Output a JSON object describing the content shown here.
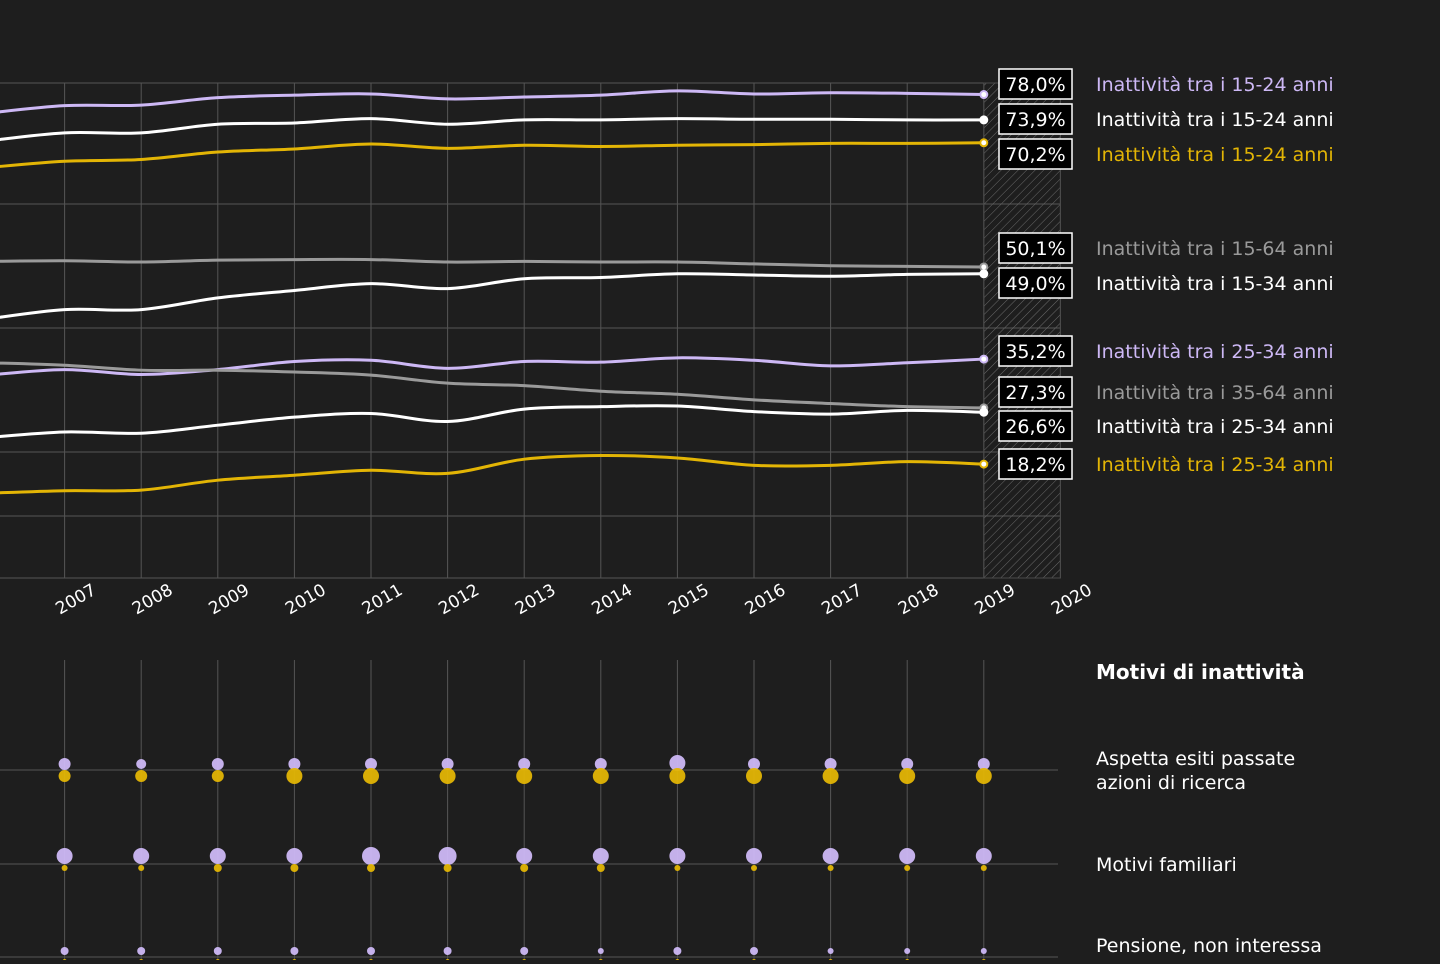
{
  "colors": {
    "background": "#1e1e1e",
    "grid": "#555555",
    "lavender": "#cdb8f5",
    "white": "#ffffff",
    "yellow": "#e3b505",
    "gray": "#9a9a9a"
  },
  "chart_data": [
    {
      "type": "line",
      "x_ticks": [
        "2007",
        "2008",
        "2009",
        "2010",
        "2011",
        "2012",
        "2013",
        "2014",
        "2015",
        "2016",
        "2017",
        "2018",
        "2019",
        "2020"
      ],
      "x_range": [
        2006,
        2020
      ],
      "y_range": [
        0,
        100
      ],
      "grid": true,
      "series": [
        {
          "name": "Inattività tra i 15-24 anni",
          "value_label": "78,0%",
          "color": "lavender",
          "x": [
            2006,
            2007,
            2008,
            2009,
            2010,
            2011,
            2012,
            2013,
            2014,
            2015,
            2016,
            2017,
            2018,
            2019
          ],
          "values": [
            75.0,
            76.2,
            76.3,
            77.5,
            77.9,
            78.1,
            77.3,
            77.6,
            77.9,
            78.6,
            78.1,
            78.3,
            78.2,
            78.0
          ]
        },
        {
          "name": "Inattività tra i 15-24 anni",
          "value_label": "73,9%",
          "color": "white",
          "x": [
            2006,
            2007,
            2008,
            2009,
            2010,
            2011,
            2012,
            2013,
            2014,
            2015,
            2016,
            2017,
            2018,
            2019
          ],
          "values": [
            70.5,
            71.8,
            71.8,
            73.2,
            73.4,
            74.1,
            73.2,
            73.9,
            73.9,
            74.1,
            74.0,
            74.0,
            73.9,
            73.9
          ]
        },
        {
          "name": "Inattività tra i 15-24 anni",
          "value_label": "70,2%",
          "color": "yellow",
          "x": [
            2006,
            2007,
            2008,
            2009,
            2010,
            2011,
            2012,
            2013,
            2014,
            2015,
            2016,
            2017,
            2018,
            2019
          ],
          "values": [
            66.2,
            67.2,
            67.5,
            68.7,
            69.2,
            70.0,
            69.3,
            69.8,
            69.6,
            69.8,
            69.9,
            70.1,
            70.1,
            70.2
          ]
        },
        {
          "name": "Inattività tra i 15-64 anni",
          "value_label": "50,1%",
          "color": "gray",
          "x": [
            2006,
            2007,
            2008,
            2009,
            2010,
            2011,
            2012,
            2013,
            2014,
            2015,
            2016,
            2017,
            2018,
            2019
          ],
          "values": [
            51.0,
            51.1,
            50.9,
            51.2,
            51.3,
            51.3,
            50.9,
            51.0,
            50.9,
            50.9,
            50.6,
            50.3,
            50.2,
            50.1
          ]
        },
        {
          "name": "Inattività tra i 15-34 anni",
          "value_label": "49,0%",
          "color": "white",
          "x": [
            2006,
            2007,
            2008,
            2009,
            2010,
            2011,
            2012,
            2013,
            2014,
            2015,
            2016,
            2017,
            2018,
            2019
          ],
          "values": [
            41.7,
            43.2,
            43.2,
            45.1,
            46.3,
            47.4,
            46.6,
            48.2,
            48.4,
            49.0,
            48.8,
            48.6,
            48.9,
            49.0
          ]
        },
        {
          "name": "Inattività tra i 25-34 anni",
          "value_label": "35,2%",
          "color": "lavender",
          "x": [
            2006,
            2007,
            2008,
            2009,
            2010,
            2011,
            2012,
            2013,
            2014,
            2015,
            2016,
            2017,
            2018,
            2019
          ],
          "values": [
            32.6,
            33.5,
            32.7,
            33.5,
            34.8,
            35.0,
            33.7,
            34.8,
            34.7,
            35.4,
            35.0,
            34.1,
            34.6,
            35.2
          ]
        },
        {
          "name": "Inattività tra i 35-64 anni",
          "value_label": "27,3%",
          "color": "gray",
          "x": [
            2006,
            2007,
            2008,
            2009,
            2010,
            2011,
            2012,
            2013,
            2014,
            2015,
            2016,
            2017,
            2018,
            2019
          ],
          "values": [
            34.6,
            34.2,
            33.4,
            33.4,
            33.1,
            32.6,
            31.3,
            30.9,
            30.0,
            29.5,
            28.6,
            28.0,
            27.5,
            27.3
          ]
        },
        {
          "name": "Inattività tra i 25-34 anni",
          "value_label": "26,6%",
          "color": "white",
          "x": [
            2006,
            2007,
            2008,
            2009,
            2010,
            2011,
            2012,
            2013,
            2014,
            2015,
            2016,
            2017,
            2018,
            2019
          ],
          "values": [
            22.5,
            23.4,
            23.2,
            24.5,
            25.8,
            26.4,
            25.1,
            27.1,
            27.5,
            27.6,
            26.7,
            26.3,
            26.9,
            26.6
          ]
        },
        {
          "name": "Inattività tra i 25-34 anni",
          "value_label": "18,2%",
          "color": "yellow",
          "x": [
            2006,
            2007,
            2008,
            2009,
            2010,
            2011,
            2012,
            2013,
            2014,
            2015,
            2016,
            2017,
            2018,
            2019
          ],
          "values": [
            13.5,
            13.9,
            14.0,
            15.6,
            16.4,
            17.2,
            16.7,
            19.0,
            19.6,
            19.2,
            18.0,
            18.0,
            18.6,
            18.2
          ]
        }
      ]
    },
    {
      "type": "scatter",
      "title": "Motivi di inattività",
      "x": [
        2007,
        2008,
        2009,
        2010,
        2011,
        2012,
        2013,
        2014,
        2015,
        2016,
        2017,
        2018,
        2019
      ],
      "categories": [
        {
          "label": "Aspetta esiti passate azioni di ricerca",
          "label_lines": [
            "Aspetta esiti passate",
            "azioni di ricerca"
          ],
          "lavender_sizes": [
            6,
            5,
            6,
            6,
            6,
            6,
            6,
            6,
            8,
            6,
            6,
            6,
            6
          ],
          "yellow_sizes": [
            6,
            6,
            6,
            8,
            8,
            8,
            8,
            8,
            8,
            8,
            8,
            8,
            8
          ]
        },
        {
          "label": "Motivi familiari",
          "label_lines": [
            "Motivi familiari"
          ],
          "lavender_sizes": [
            8,
            8,
            8,
            8,
            9,
            9,
            8,
            8,
            8,
            8,
            8,
            8,
            8
          ],
          "yellow_sizes": [
            3,
            3,
            4,
            4,
            4,
            4,
            4,
            4,
            3,
            3,
            3,
            3,
            3
          ]
        },
        {
          "label": "Pensione, non interessa",
          "label_lines": [
            "Pensione, non interessa"
          ],
          "lavender_sizes": [
            4,
            4,
            4,
            4,
            4,
            4,
            4,
            3,
            4,
            4,
            3,
            3,
            3
          ],
          "yellow_sizes": [
            2,
            2,
            2,
            2,
            2,
            2,
            2,
            2,
            2,
            2,
            2,
            2,
            2
          ]
        }
      ]
    }
  ]
}
